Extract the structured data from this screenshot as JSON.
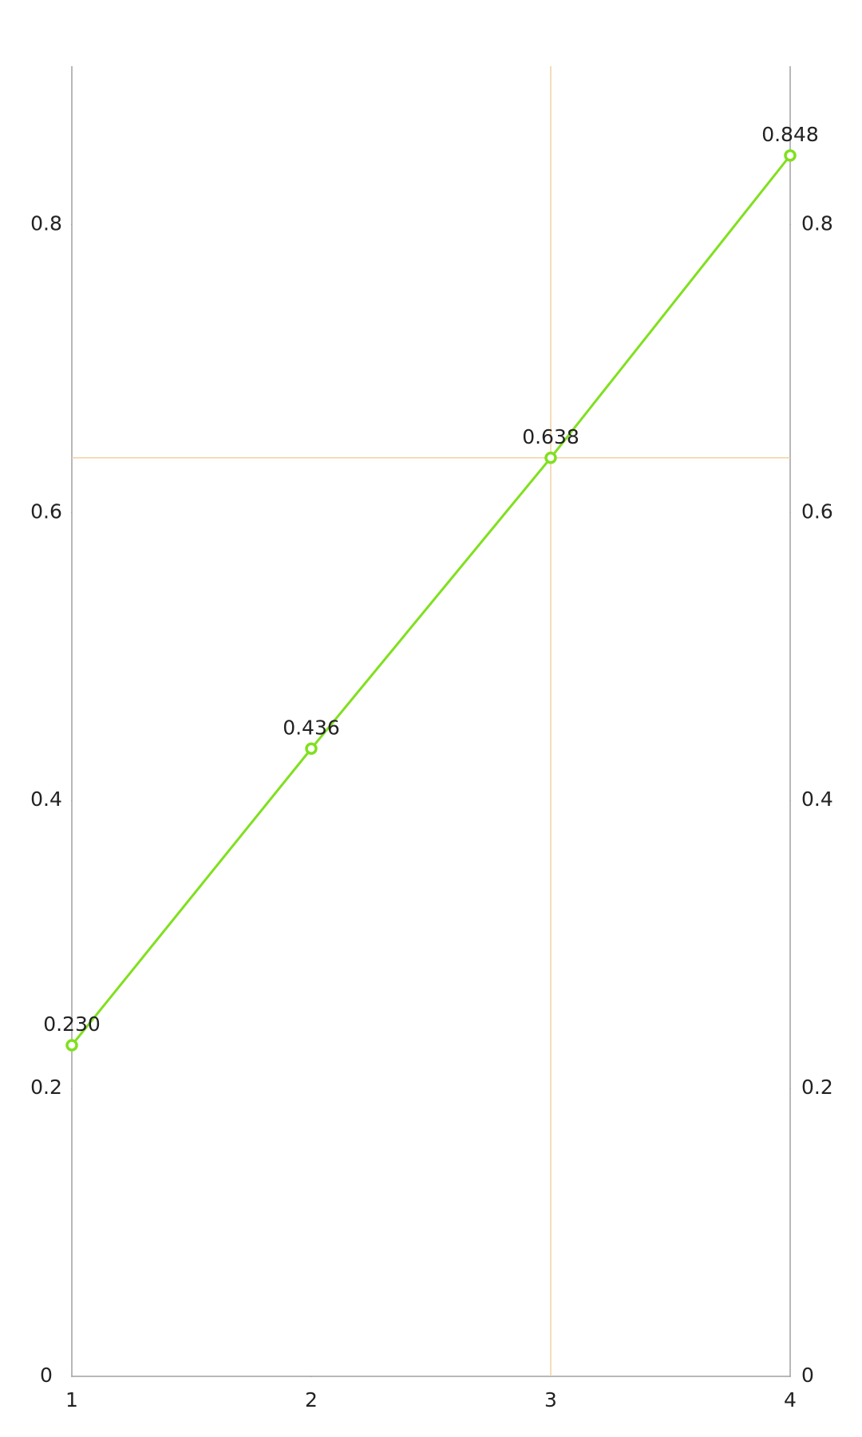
{
  "chart_data": {
    "type": "line",
    "x": [
      1,
      2,
      3,
      4
    ],
    "series": [
      {
        "color": "#80e01e",
        "values": [
          0.23,
          0.436,
          0.638,
          0.848
        ],
        "value_labels": [
          "0.230",
          "0.436",
          "0.638",
          "0.848"
        ]
      }
    ],
    "xlim": [
      1,
      4
    ],
    "xticks": [
      1,
      2,
      3,
      4
    ],
    "ylim": [
      0,
      0.91
    ],
    "yticks": [
      0,
      0.2,
      0.4,
      0.6,
      0.8
    ],
    "y2lim": [
      0,
      0.91
    ],
    "y2ticks": [
      0,
      0.2,
      0.4,
      0.6,
      0.8
    ],
    "crosshair_point": 2,
    "crosshair_color": "#f0d2a0",
    "axis_color": "#a0a0a0"
  }
}
